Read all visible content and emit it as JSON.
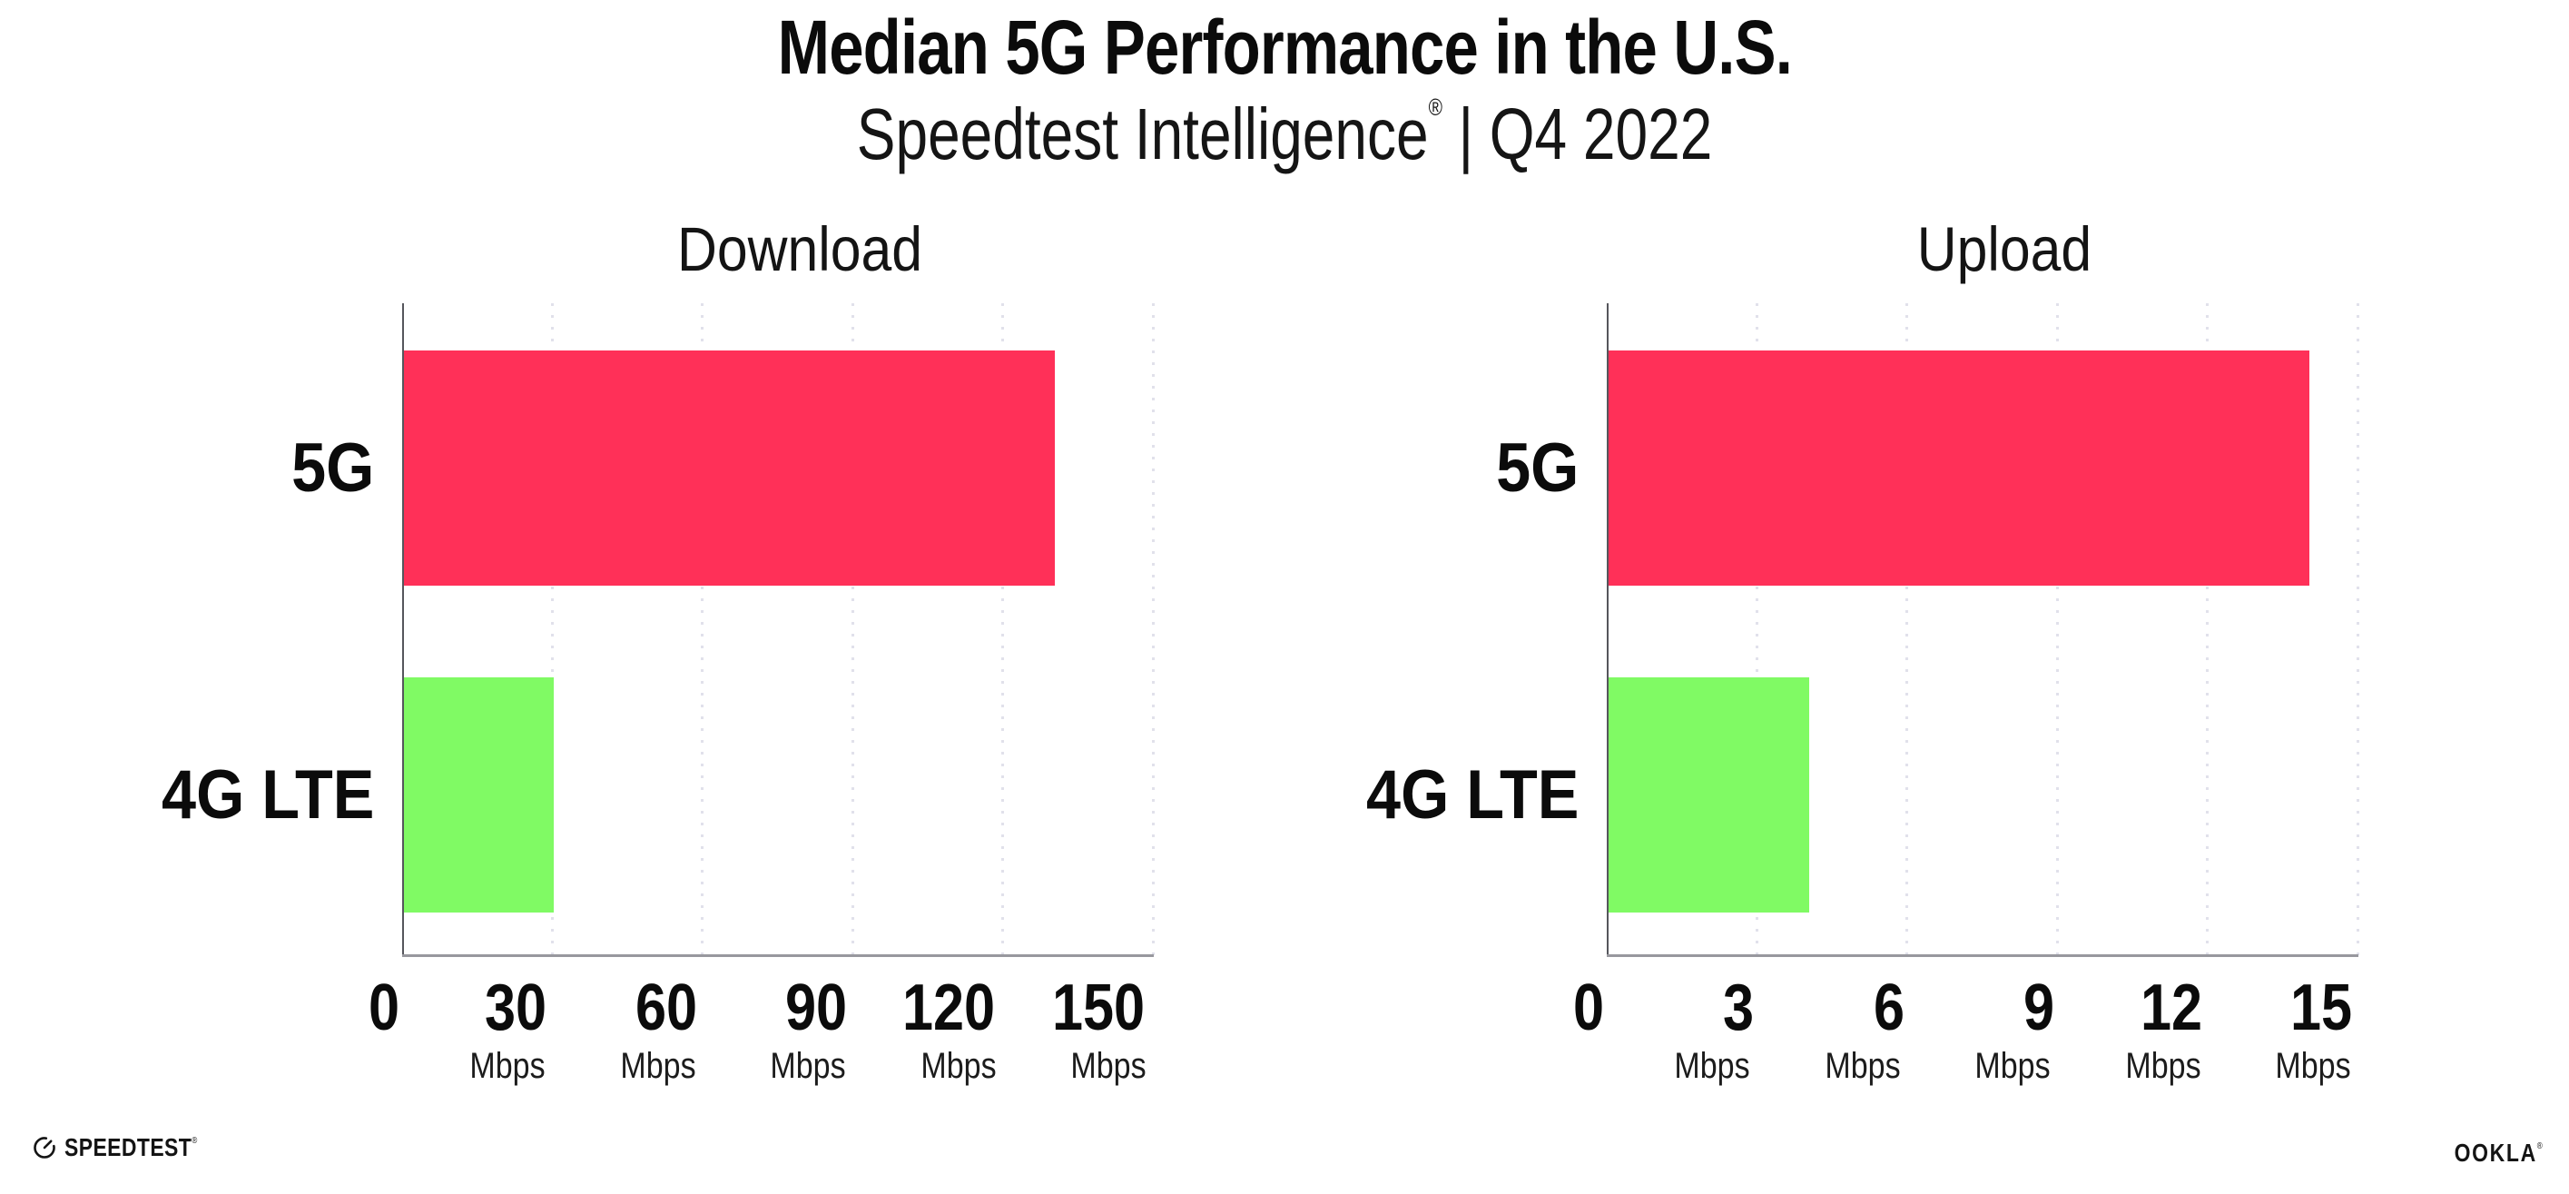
{
  "header": {
    "title": "Median 5G Performance in the U.S.",
    "subtitle": {
      "brand": "Speedtest Intelligence",
      "registered_mark": "®",
      "separator": "|",
      "period": "Q4 2022"
    }
  },
  "chart_data": [
    {
      "type": "bar",
      "orientation": "horizontal",
      "title": "Download",
      "categories": [
        "5G",
        "4G LTE"
      ],
      "values": [
        130,
        30
      ],
      "unit": "Mbps",
      "xlim": [
        0,
        150
      ],
      "xticks": [
        0,
        30,
        60,
        90,
        120,
        150
      ],
      "xtick_unit": "Mbps",
      "unit_shown_on_zero": false,
      "grid": "vertical-dotted",
      "legend": "none",
      "bar_colors": [
        "#ff3058",
        "#80fa64"
      ]
    },
    {
      "type": "bar",
      "orientation": "horizontal",
      "title": "Upload",
      "categories": [
        "5G",
        "4G LTE"
      ],
      "values": [
        14,
        4
      ],
      "unit": "Mbps",
      "xlim": [
        0,
        15
      ],
      "xticks": [
        0,
        3,
        6,
        9,
        12,
        15
      ],
      "xtick_unit": "Mbps",
      "unit_shown_on_zero": false,
      "grid": "vertical-dotted",
      "legend": "none",
      "bar_colors": [
        "#ff3058",
        "#80fa64"
      ]
    }
  ],
  "colors": {
    "bar_5g": "#ff3058",
    "bar_4g_lte": "#80fa64",
    "gridline": "#e1e1eb",
    "x_axis_line": "#98989e",
    "y_axis_line": "#55565c",
    "text": "#0f0f0f",
    "background": "#ffffff"
  },
  "footer": {
    "speedtest_label": "SPEEDTEST",
    "speedtest_mark": "®",
    "ookla_label": "OOKLA",
    "ookla_mark": "®"
  }
}
